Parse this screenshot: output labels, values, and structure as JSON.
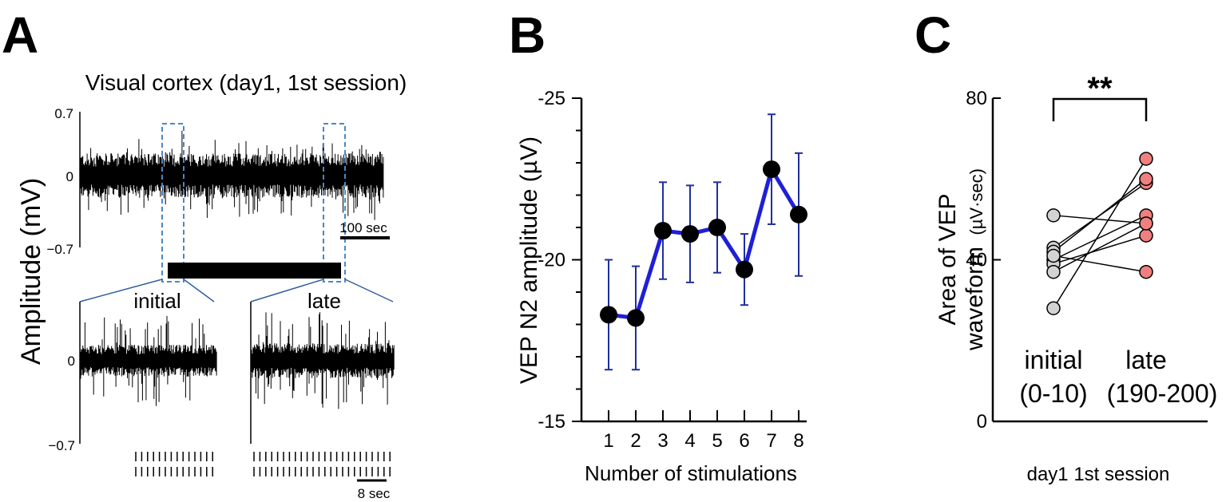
{
  "panels": {
    "a": "A",
    "b": "B",
    "c": "C"
  },
  "panel_a": {
    "title": "Visual cortex (day1, 1st session)",
    "ylabel": "Amplitude (mV)",
    "top_ticks": [
      "0.7",
      "0",
      "−0.7"
    ],
    "bottom_ticks": [
      "0",
      "−0.7"
    ],
    "scale_top": "100 sec",
    "scale_bottom": "8 sec",
    "label_initial": "initial",
    "label_late": "late"
  },
  "colors": {
    "trace": "#000000",
    "highlight_box": "#4a86c8",
    "zoom_line": "#2f5f9e",
    "line_b": "#1f1fd6",
    "error_b": "#1f2f9e",
    "dot_initial": "#d3d3d3",
    "dot_late": "#f08080"
  },
  "chart_data": [
    {
      "type": "line",
      "title": "",
      "xlabel": "Number of stimulations",
      "ylabel": "VEP N2 amplitude (µV)",
      "x": [
        1,
        2,
        3,
        4,
        5,
        6,
        7,
        8
      ],
      "values": [
        -18.3,
        -18.2,
        -20.9,
        -20.8,
        -21.0,
        -19.7,
        -22.8,
        -21.4
      ],
      "errors": [
        1.7,
        1.6,
        1.5,
        1.5,
        1.4,
        1.1,
        1.7,
        1.9
      ],
      "ylim": [
        -15,
        -25
      ],
      "yticks": [
        "-25",
        "-20",
        "-15"
      ],
      "inverted_y": true
    },
    {
      "type": "scatter",
      "title": "",
      "xlabel": "day1 1st session",
      "ylabel_line1": "Area of VEP",
      "ylabel_line2": "waveform",
      "ylabel_unit": "(µV·sec)",
      "categories": [
        "initial",
        "late"
      ],
      "category_ranges": [
        "(0-10)",
        "(190-200)"
      ],
      "pairs": [
        [
          51,
          49
        ],
        [
          43,
          59
        ],
        [
          42,
          60
        ],
        [
          40,
          51
        ],
        [
          39,
          46
        ],
        [
          37,
          49
        ],
        [
          28,
          65
        ],
        [
          41,
          37
        ]
      ],
      "ylim": [
        0,
        80
      ],
      "yticks": [
        "0",
        "40",
        "80"
      ],
      "significance": "**"
    }
  ]
}
